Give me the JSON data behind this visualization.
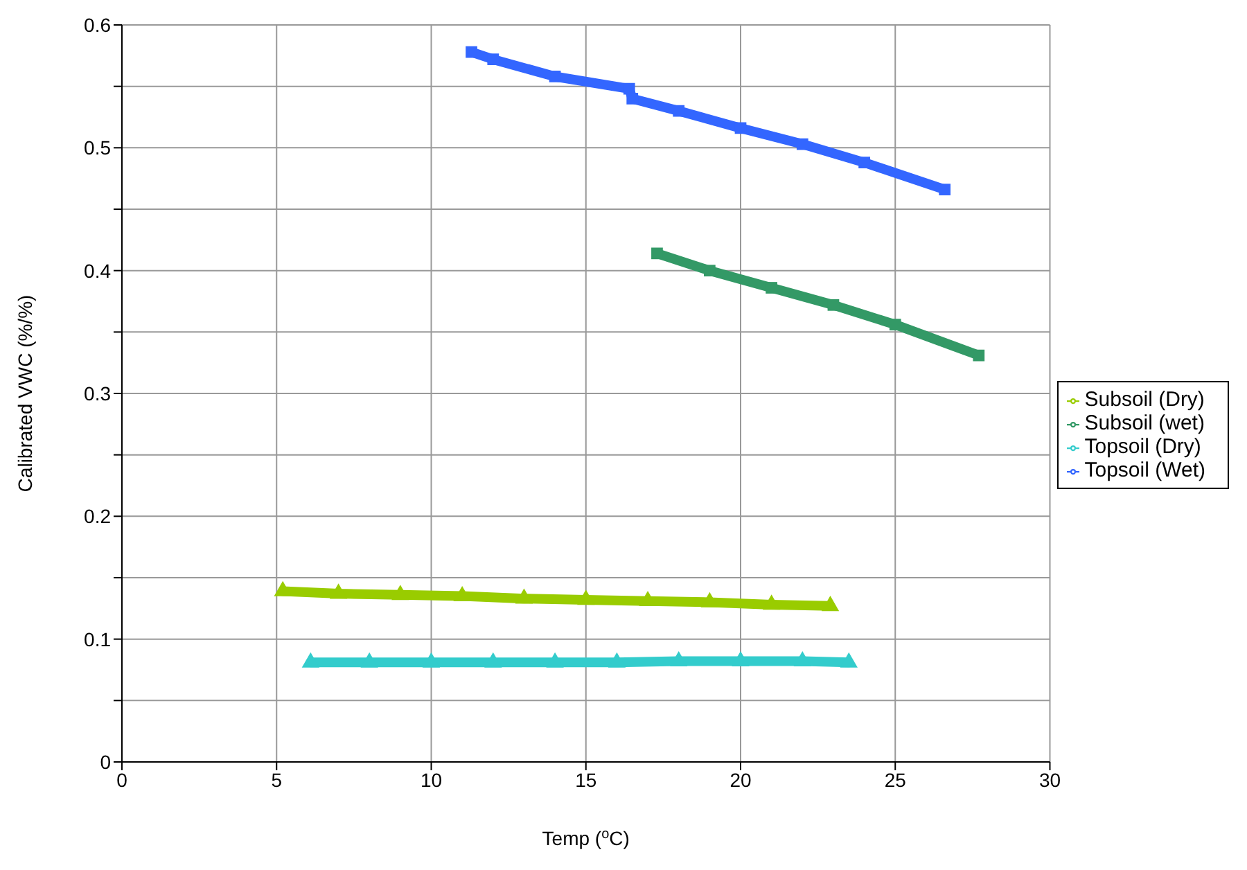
{
  "chart_data": {
    "type": "line",
    "xlabel": "Temp ($^{o}$C)",
    "ylabel": "Calibrated VWC (%/%)",
    "xlim": [
      0,
      30
    ],
    "xticks": [
      0,
      5,
      10,
      15,
      20,
      25,
      30
    ],
    "ylim": [
      0,
      0.6
    ],
    "yticks": [
      0,
      {
        "value": 0.05,
        "label": null
      },
      0.1,
      {
        "value": 0.15,
        "label": null
      },
      0.2,
      {
        "value": 0.25,
        "label": null
      },
      0.3,
      {
        "value": 0.35,
        "label": null
      },
      0.4,
      {
        "value": 0.45,
        "label": null
      },
      0.5,
      {
        "value": 0.55,
        "label": null
      },
      0.6
    ],
    "grid": true,
    "legend": "right",
    "line_style": "solid",
    "series": [
      {
        "name": "Topsoil (Dry)",
        "color": "#33cccc",
        "marker": "triangle",
        "x": [
          6.1,
          8,
          10,
          12,
          14,
          16,
          18,
          20,
          22,
          23.5
        ],
        "values": [
          0.081,
          0.081,
          0.081,
          0.081,
          0.081,
          0.081,
          0.082,
          0.082,
          0.082,
          0.081
        ]
      },
      {
        "name": "Topsoil (Wet)",
        "color": "#3366ff",
        "marker": "square",
        "x": [
          11.3,
          12,
          14,
          16.4,
          16.5,
          18,
          20,
          22,
          24,
          26.6
        ],
        "values": [
          0.578,
          0.572,
          0.558,
          0.548,
          0.54,
          0.53,
          0.516,
          0.503,
          0.488,
          0.466
        ]
      },
      {
        "name": "Subsoil (Dry)",
        "color": "#99cc00",
        "marker": "triangle",
        "x": [
          5.2,
          7,
          9,
          11,
          13,
          15,
          17,
          19,
          21,
          22.9
        ],
        "values": [
          0.139,
          0.137,
          0.136,
          0.135,
          0.133,
          0.132,
          0.131,
          0.13,
          0.128,
          0.127
        ]
      },
      {
        "name": "Subsoil (wet)",
        "color": "#339966",
        "marker": "square",
        "x": [
          17.3,
          19,
          21,
          23,
          25,
          27.7
        ],
        "values": [
          0.414,
          0.4,
          0.386,
          0.372,
          0.356,
          0.331
        ]
      }
    ]
  }
}
